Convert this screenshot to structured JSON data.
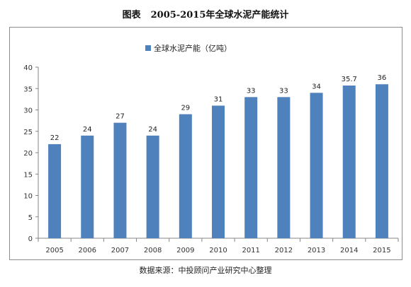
{
  "figure": {
    "title_prefix": "图表",
    "title": "2005-2015年全球水泥产能统计"
  },
  "source_note": "数据来源：中投顾问产业研究中心整理",
  "chart_data": {
    "type": "bar",
    "categories": [
      "2005",
      "2006",
      "2007",
      "2008",
      "2009",
      "2010",
      "2011",
      "2012",
      "2013",
      "2014",
      "2015"
    ],
    "series": [
      {
        "name": "全球水泥产能（亿吨）",
        "color": "#4f81bd",
        "values": [
          22,
          24,
          27,
          24,
          29,
          31,
          33,
          33,
          34,
          35.7,
          36
        ]
      }
    ],
    "data_labels": [
      "22",
      "24",
      "27",
      "24",
      "29",
      "31",
      "33",
      "33",
      "34",
      "35.7",
      "36"
    ],
    "ylim": [
      0,
      40
    ],
    "yticks": [
      0,
      5,
      10,
      15,
      20,
      25,
      30,
      35,
      40
    ],
    "grid": false,
    "legend_position": "top-center"
  }
}
